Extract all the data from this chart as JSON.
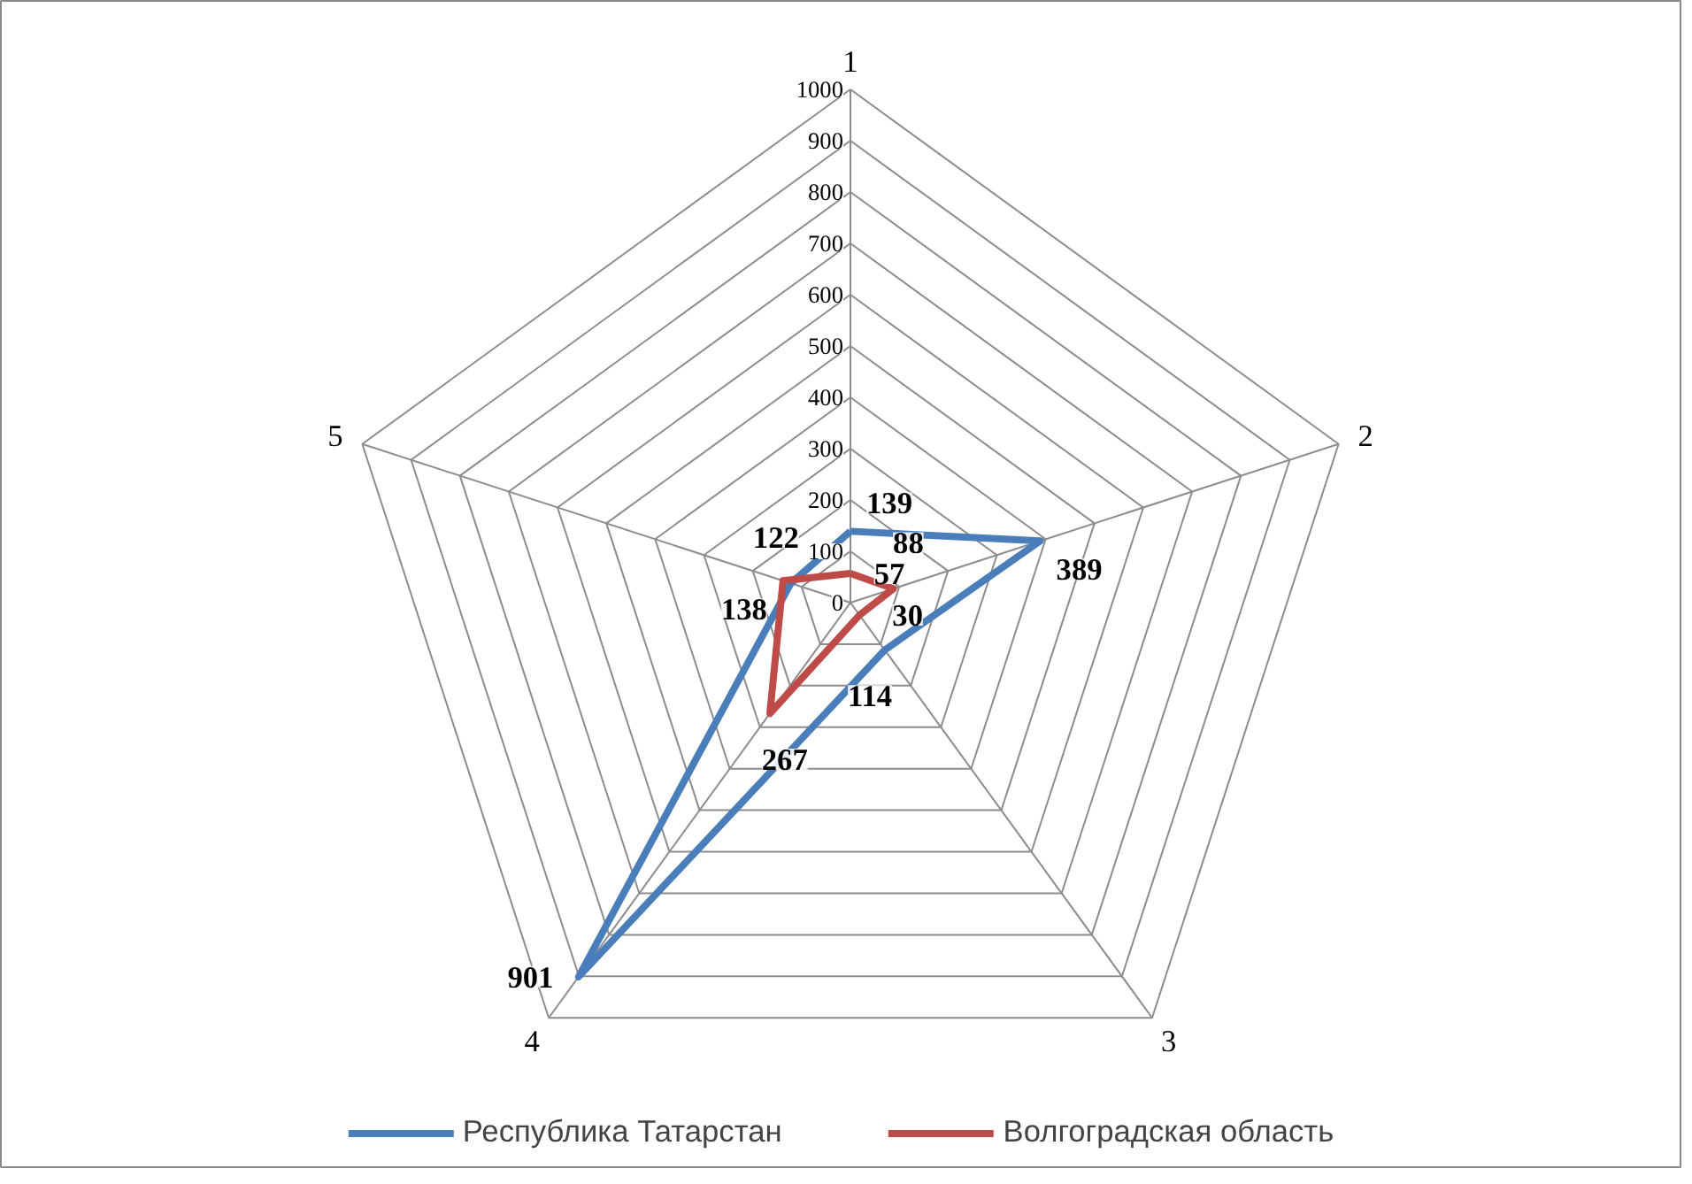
{
  "chart_data": {
    "type": "radar",
    "categories": [
      "1",
      "2",
      "3",
      "4",
      "5"
    ],
    "series": [
      {
        "name": "Республика Татарстан",
        "color": "#4a7ebb",
        "values": [
          139,
          389,
          114,
          901,
          122
        ]
      },
      {
        "name": "Волгоградская область",
        "color": "#be4b48",
        "values": [
          57,
          88,
          30,
          267,
          138
        ]
      }
    ],
    "ylim": [
      0,
      1000
    ],
    "yticks": [
      0,
      100,
      200,
      300,
      400,
      500,
      600,
      700,
      800,
      900,
      1000
    ],
    "data_labels": true,
    "legend": "bottom",
    "marker": "none"
  }
}
